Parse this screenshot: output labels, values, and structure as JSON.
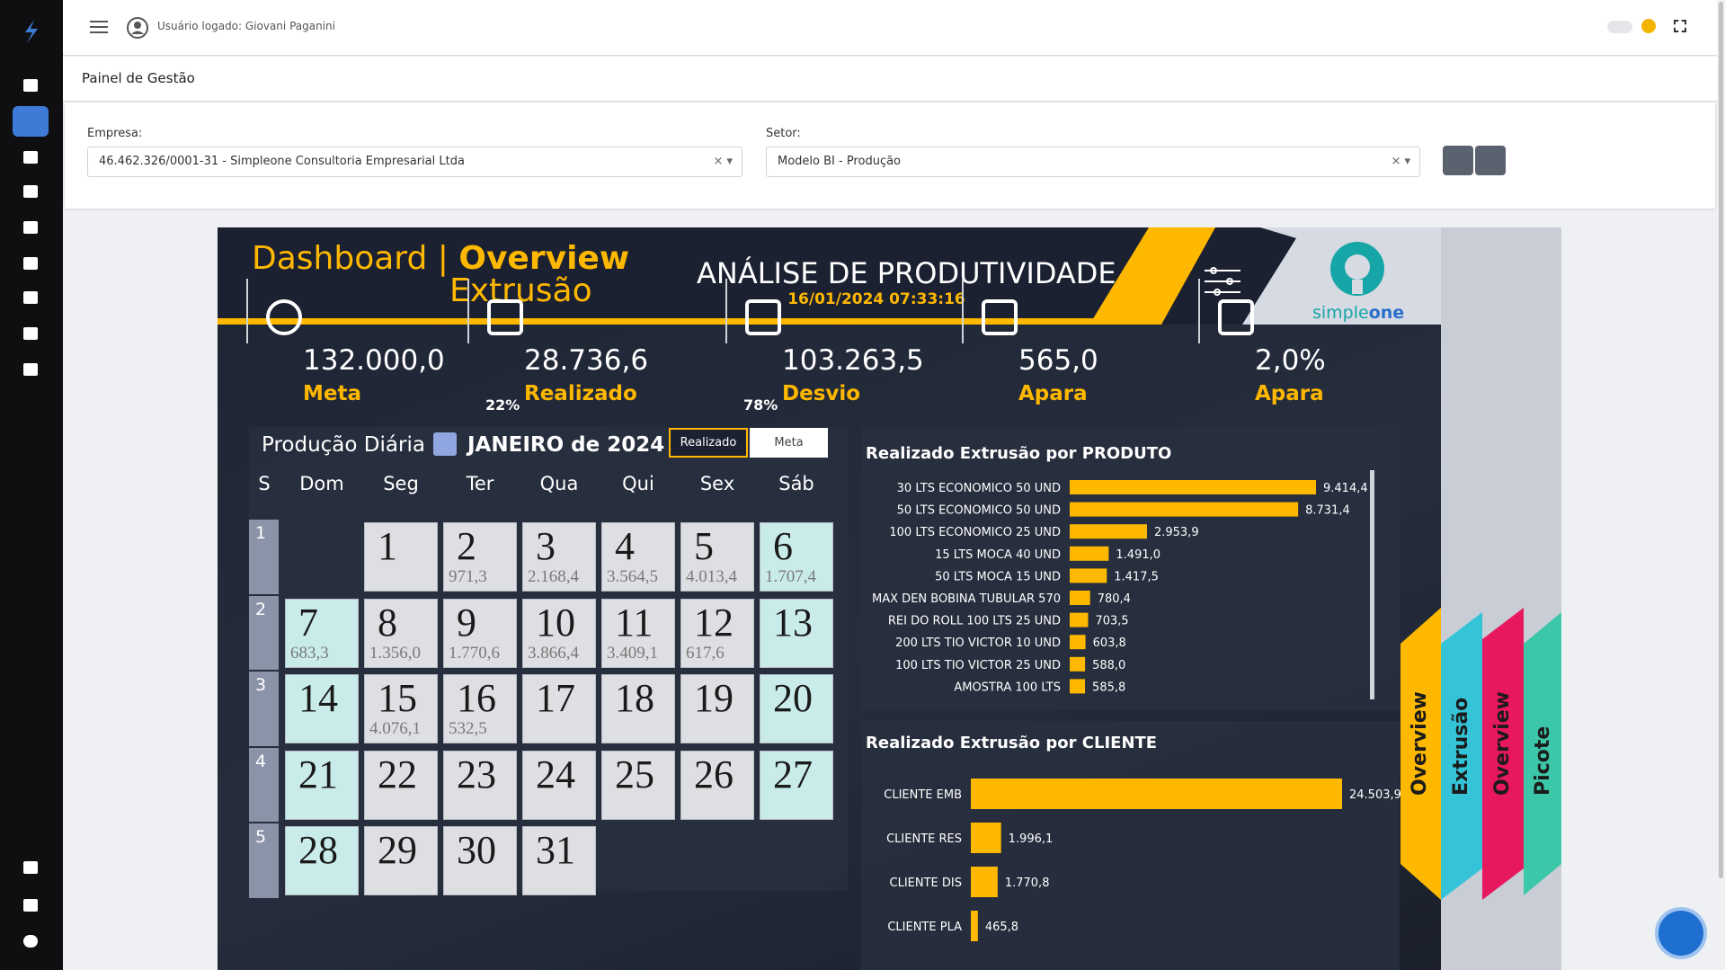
{
  "header": {
    "user": "Usuário logado: Giovani Paganini"
  },
  "page_title": "Painel de Gestão",
  "filters": {
    "empresa_label": "Empresa:",
    "empresa": "46.462.326/0001-31 - Simpleone Consultoria Empresarial Ltda",
    "setor_label": "Setor:",
    "setor": "Modelo BI - Produção"
  },
  "dashboard": {
    "title_a": "Dashboard",
    "separator": "|",
    "title_b": "Overview",
    "subtitle": "Extrusão",
    "heading": "ANÁLISE DE PRODUTIVIDADE",
    "timestamp": "16/01/2024 07:33:16",
    "logo_a": "simple",
    "logo_b": "one"
  },
  "kpis": [
    {
      "value": "132.000,0",
      "label": "Meta"
    },
    {
      "value": "28.736,6",
      "label": "Realizado",
      "pct": "22%"
    },
    {
      "value": "103.263,5",
      "label": "Desvio",
      "pct": "78%"
    },
    {
      "value": "565,0",
      "label": "Apara"
    },
    {
      "value": "2,0%",
      "label": "Apara"
    }
  ],
  "calendar": {
    "title": "Produção Diária",
    "month": "JANEIRO de 2024",
    "toggle": [
      "Realizado",
      "Meta"
    ],
    "weekdays": [
      "S",
      "Dom",
      "Seg",
      "Ter",
      "Qua",
      "Qui",
      "Sex",
      "Sáb"
    ],
    "weeks": [
      "1",
      "2",
      "3",
      "4",
      "5"
    ],
    "days": [
      {
        "day": "1"
      },
      {
        "day": "2",
        "value": "971,3"
      },
      {
        "day": "3",
        "value": "2.168,4"
      },
      {
        "day": "4",
        "value": "3.564,5"
      },
      {
        "day": "5",
        "value": "4.013,4"
      },
      {
        "day": "6",
        "value": "1.707,4"
      },
      {
        "day": "7",
        "value": "683,3"
      },
      {
        "day": "8",
        "value": "1.356,0"
      },
      {
        "day": "9",
        "value": "1.770,6"
      },
      {
        "day": "10",
        "value": "3.866,4"
      },
      {
        "day": "11",
        "value": "3.409,1"
      },
      {
        "day": "12",
        "value": "617,6"
      },
      {
        "day": "13"
      },
      {
        "day": "14"
      },
      {
        "day": "15",
        "value": "4.076,1"
      },
      {
        "day": "16",
        "value": "532,5"
      },
      {
        "day": "17"
      },
      {
        "day": "18"
      },
      {
        "day": "19"
      },
      {
        "day": "20"
      },
      {
        "day": "21"
      },
      {
        "day": "22"
      },
      {
        "day": "23"
      },
      {
        "day": "24"
      },
      {
        "day": "25"
      },
      {
        "day": "26"
      },
      {
        "day": "27"
      },
      {
        "day": "28"
      },
      {
        "day": "29"
      },
      {
        "day": "30"
      },
      {
        "day": "31"
      }
    ]
  },
  "chart_data": [
    {
      "type": "bar",
      "title": "Realizado Extrusão por PRODUTO",
      "color": "#ffb800",
      "categories": [
        "30 LTS ECONOMICO 50 UND",
        "50 LTS ECONOMICO 50 UND",
        "100 LTS ECONOMICO 25 UND",
        "15 LTS MOCA 40 UND",
        "50 LTS MOCA 15 UND",
        "MAX DEN BOBINA TUBULAR 570",
        "REI DO ROLL 100 LTS 25 UND",
        "200 LTS TIO VICTOR 10 UND",
        "100 LTS TIO VICTOR 25 UND",
        "AMOSTRA 100 LTS"
      ],
      "values": [
        9414.4,
        8731.4,
        2953.9,
        1491.0,
        1417.5,
        780.4,
        703.5,
        603.8,
        588.0,
        585.8
      ],
      "value_labels": [
        "9.414,4",
        "8.731,4",
        "2.953,9",
        "1.491,0",
        "1.417,5",
        "780,4",
        "703,5",
        "603,8",
        "588,0",
        "585,8"
      ]
    },
    {
      "type": "bar",
      "title": "Realizado Extrusão por CLIENTE",
      "color": "#ffb800",
      "categories": [
        "CLIENTE EMB",
        "CLIENTE RES",
        "CLIENTE DIS",
        "CLIENTE PLA"
      ],
      "values": [
        24503.9,
        1996.1,
        1770.8,
        465.8
      ],
      "value_labels": [
        "24.503,9",
        "1.996,1",
        "1.770,8",
        "465,8"
      ]
    }
  ],
  "tabs": [
    "Overview",
    "Extrusão",
    "Overview",
    "Picote"
  ]
}
